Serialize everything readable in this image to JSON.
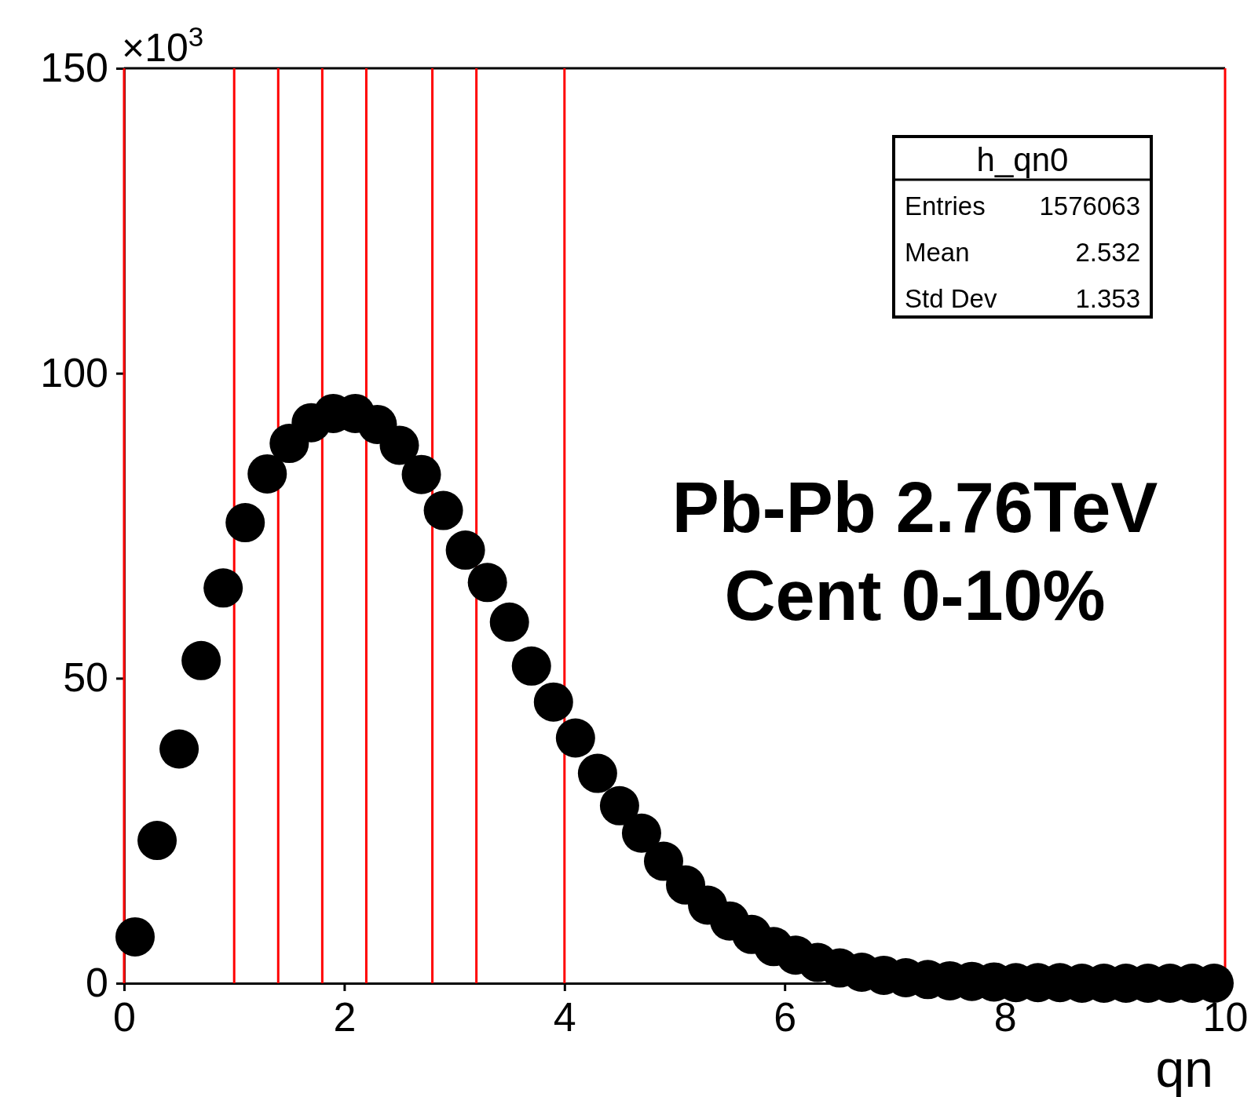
{
  "chart_data": {
    "type": "scatter",
    "xlabel": "qn",
    "marker": "circle",
    "grid": false,
    "xlim": [
      0,
      10
    ],
    "ylim": [
      0,
      150
    ],
    "xticks": [
      0,
      2,
      4,
      6,
      8,
      10
    ],
    "yticks": [
      0,
      50,
      100,
      150
    ],
    "series": [
      {
        "color": "#000000",
        "x": [
          0.1,
          0.3,
          0.5,
          0.7,
          0.9,
          1.1,
          1.3,
          1.5,
          1.7,
          1.9,
          2.1,
          2.3,
          2.5,
          2.7,
          2.9,
          3.1,
          3.3,
          3.5,
          3.7,
          3.9,
          4.1,
          4.3,
          4.5,
          4.7,
          4.9,
          5.1,
          5.3,
          5.5,
          5.7,
          5.9,
          6.1,
          6.3,
          6.5,
          6.7,
          6.9,
          7.1,
          7.3,
          7.5,
          7.7,
          7.9,
          8.1,
          8.3,
          8.5,
          8.7,
          8.9,
          9.1,
          9.3,
          9.5,
          9.7,
          9.9
        ],
        "values": [
          7.6,
          23.4,
          38.4,
          52.9,
          64.8,
          75.5,
          83.5,
          88.5,
          91.9,
          93.4,
          93.4,
          91.6,
          88.2,
          83.4,
          77.5,
          71.0,
          65.7,
          59.2,
          52.0,
          46.1,
          40.2,
          34.4,
          29.1,
          24.6,
          20.0,
          16.1,
          12.8,
          10.2,
          8.0,
          6.0,
          4.6,
          3.4,
          2.5,
          1.8,
          1.3,
          0.9,
          0.6,
          0.4,
          0.3,
          0.2,
          0.1,
          0.1,
          0.1,
          0.0,
          0.0,
          0.0,
          0.0,
          0.0,
          0.0,
          0.0
        ]
      }
    ],
    "ref_lines": [
      {
        "axis": "x",
        "value": 1,
        "color": "#ff0000"
      },
      {
        "axis": "x",
        "value": 1.4,
        "color": "#ff0000"
      },
      {
        "axis": "x",
        "value": 1.8,
        "color": "#ff0000"
      },
      {
        "axis": "x",
        "value": 2.2,
        "color": "#ff0000"
      },
      {
        "axis": "x",
        "value": 2.8,
        "color": "#ff0000"
      },
      {
        "axis": "x",
        "value": 3.2,
        "color": "#ff0000"
      },
      {
        "axis": "x",
        "value": 4,
        "color": "#ff0000"
      }
    ],
    "annotations": [
      "×10$^{3}$",
      "h_qn0",
      "Entries",
      "1576063",
      "Mean",
      "2.532",
      "Std Dev",
      "1.353",
      "Pb-Pb 2.76TeV",
      "Cent 0-10%"
    ]
  }
}
